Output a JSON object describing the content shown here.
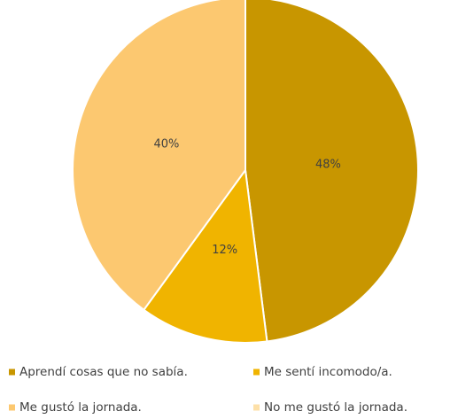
{
  "chart_data": {
    "type": "pie",
    "categories": [
      "Aprendí cosas que no sabía.",
      "Me sentí incomodo/a.",
      "Me gustó la jornada.",
      "No me gustó la jornada."
    ],
    "values": [
      48,
      12,
      40,
      0
    ],
    "value_labels": [
      "48%",
      "12%",
      "40%",
      null
    ],
    "colors": [
      "#c89600",
      "#f0b400",
      "#fcc870",
      "#fde0a8"
    ],
    "legend": "bottom"
  }
}
